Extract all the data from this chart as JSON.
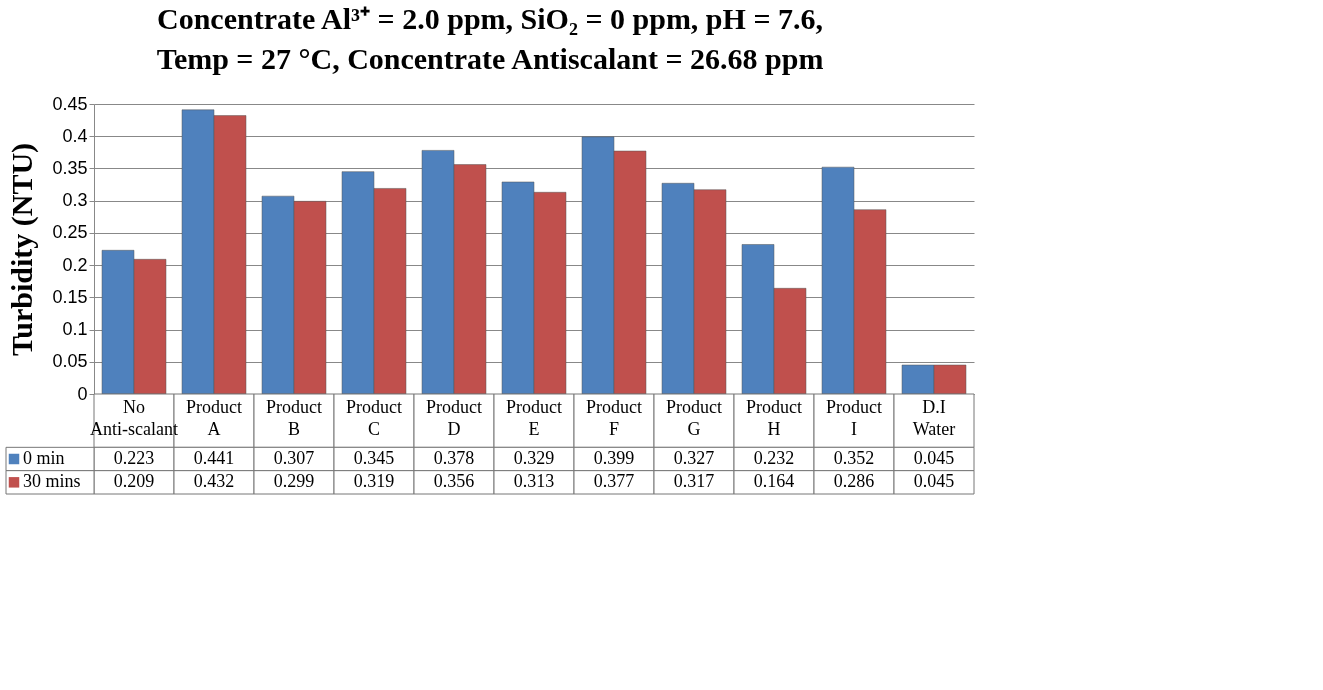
{
  "chart_data": {
    "type": "bar",
    "title": "Concentrate Al³⁺ = 2.0 ppm, SiO₂ = 0 ppm, pH = 7.6,\nTemp = 27 °C, Concentrate Antiscalant =  26.68 ppm",
    "ylabel": "Turbidity (NTU)",
    "categories": [
      "No Anti-scalant",
      "Product A",
      "Product B",
      "Product C",
      "Product D",
      "Product E",
      "Product F",
      "Product G",
      "Product H",
      "Product I",
      "D.I Water"
    ],
    "series": [
      {
        "name": "0 min",
        "color": "#4f81bd",
        "values": [
          0.223,
          0.441,
          0.307,
          0.345,
          0.378,
          0.329,
          0.399,
          0.327,
          0.232,
          0.352,
          0.045
        ]
      },
      {
        "name": "30 mins",
        "color": "#c0504d",
        "values": [
          0.209,
          0.432,
          0.299,
          0.319,
          0.356,
          0.313,
          0.377,
          0.317,
          0.164,
          0.286,
          0.045
        ]
      }
    ],
    "ylim": [
      0,
      0.45
    ],
    "yticks": [
      0,
      0.05,
      0.1,
      0.15,
      0.2,
      0.25,
      0.3,
      0.35,
      0.4,
      0.45
    ],
    "grid": "y",
    "legend": "bottom",
    "data_labels": true
  }
}
